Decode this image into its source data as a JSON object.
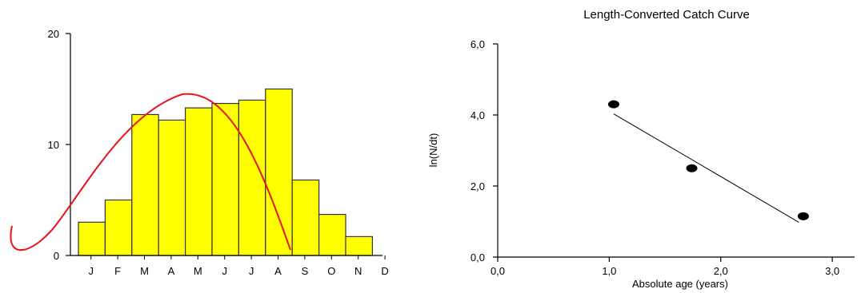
{
  "colors": {
    "bar_fill": "#ffff00",
    "bar_stroke": "#333333",
    "annotation_curve": "#e8141b",
    "axis": "#000000",
    "marker": "#000000"
  },
  "chart_data": [
    {
      "type": "bar",
      "title": "",
      "xlabel": "",
      "ylabel": "",
      "categories": [
        "J",
        "F",
        "M",
        "A",
        "M",
        "J",
        "J",
        "A",
        "S",
        "O",
        "N",
        "D"
      ],
      "values": [
        3,
        5,
        12.7,
        12.2,
        13.3,
        13.7,
        14,
        15,
        6.8,
        3.7,
        1.7,
        0
      ],
      "ylim": [
        0,
        20
      ],
      "yticks": [
        "0",
        "10",
        "20"
      ],
      "grid": false,
      "annotation": "hand-drawn red curve over bars"
    },
    {
      "type": "scatter",
      "title": "Length-Converted Catch Curve",
      "xlabel": "Absolute age (years)",
      "ylabel": "ln(N/dt)",
      "xlim": [
        0,
        3.2
      ],
      "ylim": [
        0,
        6
      ],
      "xticks": [
        "0,0",
        "1,0",
        "2,0",
        "3,0"
      ],
      "yticks": [
        "0,0",
        "2,0",
        "4,0",
        "6,0"
      ],
      "points": [
        {
          "x": 1.04,
          "y": 4.3
        },
        {
          "x": 1.74,
          "y": 2.5
        },
        {
          "x": 2.74,
          "y": 1.15
        }
      ],
      "fit_line": [
        {
          "x": 1.04,
          "y": 4.03
        },
        {
          "x": 2.7,
          "y": 0.98
        }
      ],
      "grid": false
    }
  ]
}
